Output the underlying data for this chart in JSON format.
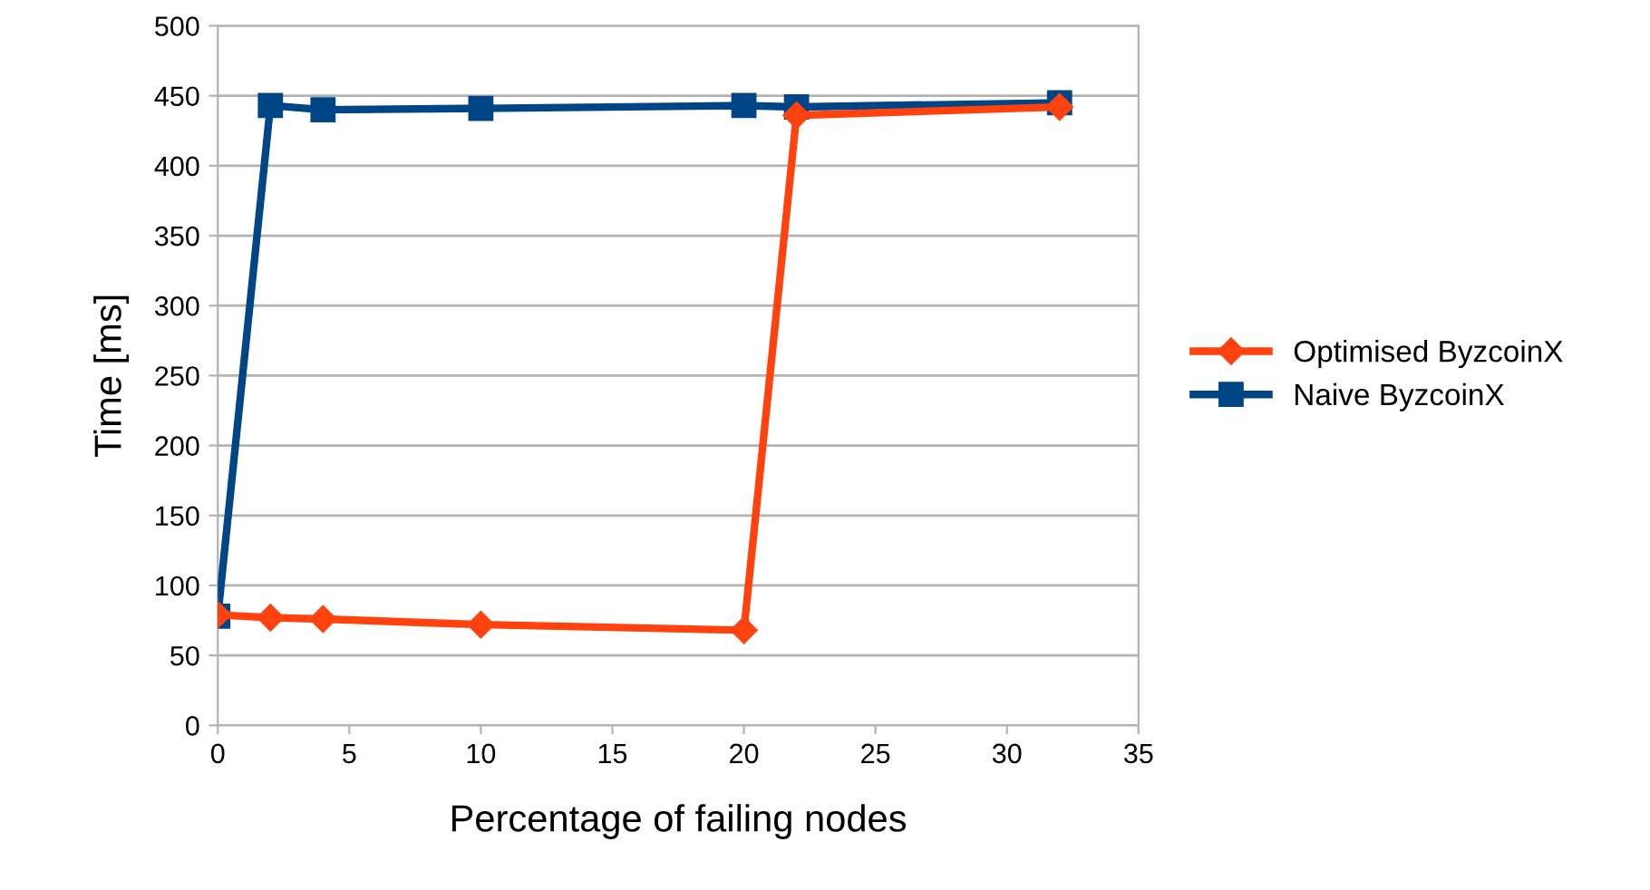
{
  "chart_data": {
    "type": "line",
    "xlabel": "Percentage of failing nodes",
    "ylabel": "Time [ms]",
    "xlim": [
      0,
      35
    ],
    "xticks": [
      0,
      5,
      10,
      15,
      20,
      25,
      30,
      35
    ],
    "ylim": [
      0,
      500
    ],
    "yticks": [
      0,
      50,
      100,
      150,
      200,
      250,
      300,
      350,
      400,
      450,
      500
    ],
    "grid": "y",
    "legend": "right",
    "line_style": "solid",
    "series": [
      {
        "name": "Optimised ByzcoinX",
        "color": "#ff420e",
        "marker": "diamond",
        "x": [
          0,
          2,
          4,
          10,
          20,
          22,
          32
        ],
        "values": [
          79,
          77,
          76,
          72,
          68,
          436,
          442
        ]
      },
      {
        "name": "Naive ByzcoinX",
        "color": "#004586",
        "marker": "square",
        "x": [
          0,
          2,
          4,
          10,
          20,
          22,
          32
        ],
        "values": [
          78,
          443,
          440,
          441,
          443,
          442,
          445
        ]
      }
    ]
  }
}
